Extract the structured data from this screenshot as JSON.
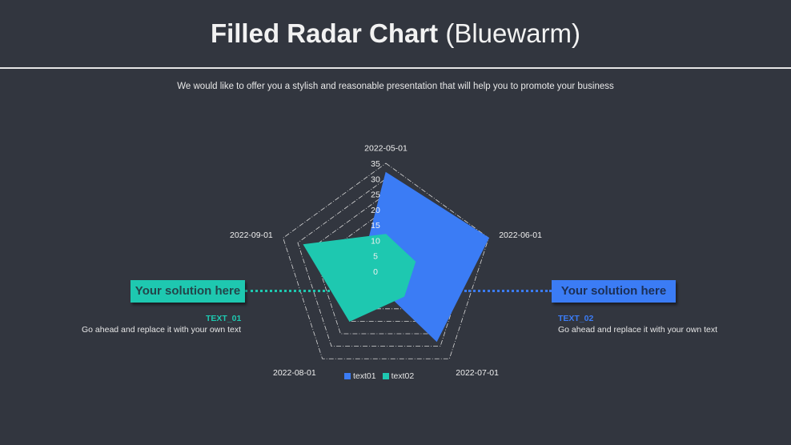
{
  "header": {
    "title_bold": "Filled Radar Chart",
    "title_light": "(Bluewarm)",
    "subtitle": "We would like to offer you a stylish and reasonable presentation that will help you to promote your business"
  },
  "left_panel": {
    "box_label": "Your solution here",
    "note_title": "TEXT_01",
    "note_body": "Go ahead and replace it with your own text",
    "color": "#1ec8b0"
  },
  "right_panel": {
    "box_label": "Your solution here",
    "note_title": "TEXT_02",
    "note_body": "Go ahead and replace it with your own text",
    "color": "#3b7cf5"
  },
  "chart_data": {
    "type": "radar",
    "categories": [
      "2022-05-01",
      "2022-06-01",
      "2022-07-01",
      "2022-08-01",
      "2022-09-01"
    ],
    "series": [
      {
        "name": "text01",
        "values": [
          32,
          35,
          28,
          5,
          8
        ],
        "color": "#3b7cf5"
      },
      {
        "name": "text02",
        "values": [
          12,
          10,
          10,
          20,
          28
        ],
        "color": "#1ec8b0"
      }
    ],
    "rlim": [
      0,
      35
    ],
    "ticks": [
      0,
      5,
      10,
      15,
      20,
      25,
      30,
      35
    ],
    "grid_style": "dash-dot",
    "legend_position": "bottom"
  }
}
